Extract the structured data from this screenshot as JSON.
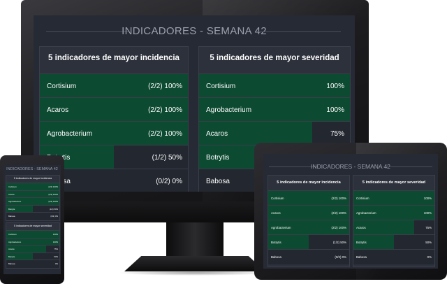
{
  "dashboard": {
    "title": "INDICADORES - SEMANA 42",
    "incidence": {
      "header": "5 indicadores de mayor incidencia",
      "rows": [
        {
          "label": "Cortisium",
          "value": "(2/2) 100%",
          "fraction": 1.0
        },
        {
          "label": "Acaros",
          "value": "(2/2) 100%",
          "fraction": 1.0
        },
        {
          "label": "Agrobacterium",
          "value": "(2/2) 100%",
          "fraction": 1.0
        },
        {
          "label": "Botrytis",
          "value": "(1/2) 50%",
          "fraction": 0.5
        },
        {
          "label": "Babosa",
          "value": "(0/2) 0%",
          "fraction": 0.0
        }
      ]
    },
    "severity": {
      "header": "5 indicadores de mayor severidad",
      "rows": [
        {
          "label": "Cortisium",
          "value": "100%",
          "fraction": 1.0
        },
        {
          "label": "Agrobacterium",
          "value": "100%",
          "fraction": 1.0
        },
        {
          "label": "Acaros",
          "value": "75%",
          "fraction": 0.75
        },
        {
          "label": "Botrytis",
          "value": "50%",
          "fraction": 0.5
        },
        {
          "label": "Babosa",
          "value": "0%",
          "fraction": 0.0
        }
      ]
    }
  },
  "colors": {
    "screen_bg": "#262a35",
    "panel_bg": "#2d313b",
    "row_bg": "#232730",
    "bar_fill": "#0d4a32",
    "title_text": "#9aa0ad"
  }
}
